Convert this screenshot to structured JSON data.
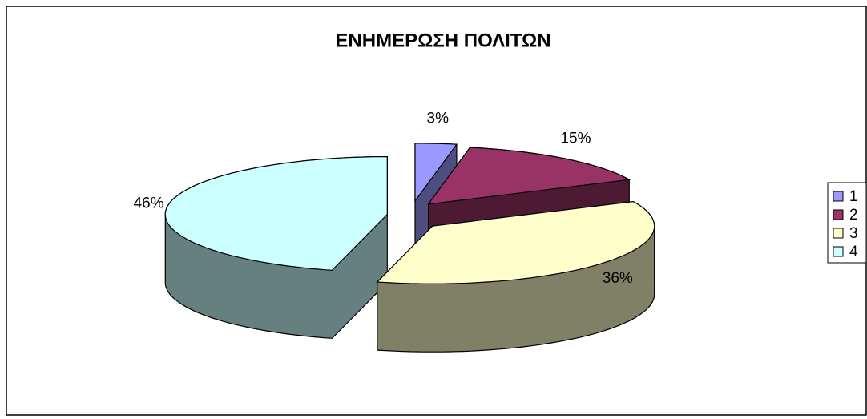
{
  "chart_data": {
    "type": "pie",
    "title": "ΕΝΗΜΕΡΩΣΗ ΠΟΛΙΤΩΝ",
    "categories": [
      "1",
      "2",
      "3",
      "4"
    ],
    "values": [
      3,
      15,
      36,
      46
    ],
    "value_labels": [
      "3%",
      "15%",
      "36%",
      "46%"
    ],
    "colors": [
      "#9999ff",
      "#993366",
      "#ffffcc",
      "#ccffff"
    ],
    "legend": "right"
  }
}
